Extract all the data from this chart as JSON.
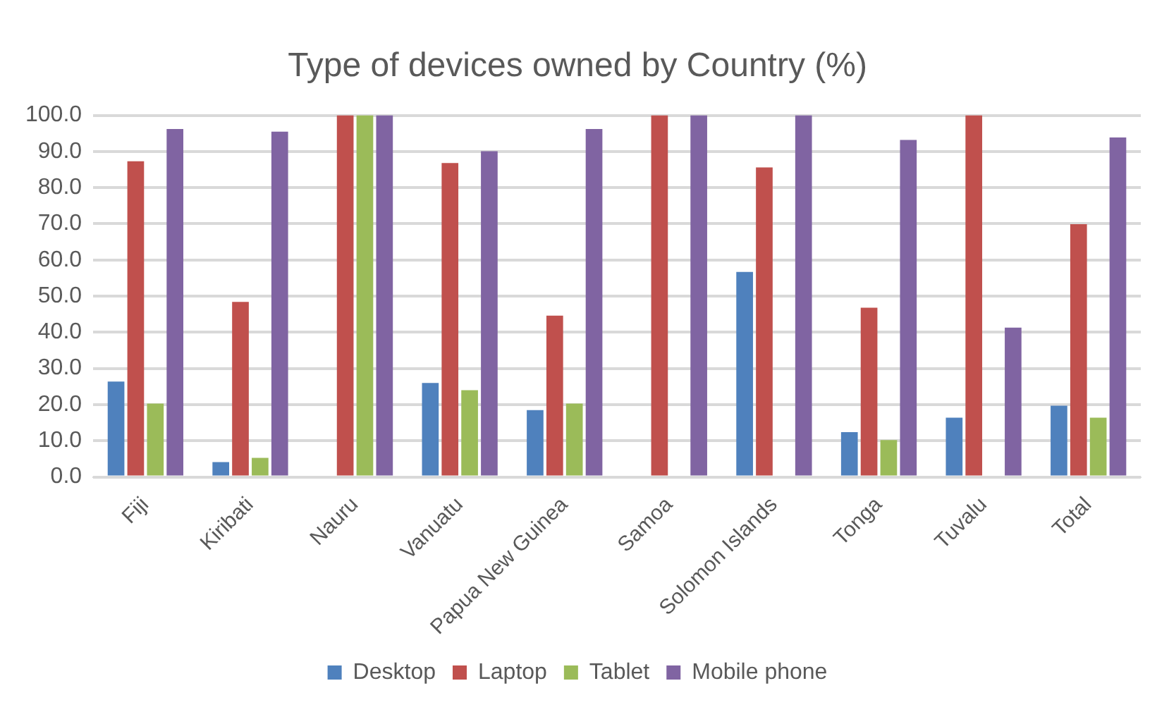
{
  "chart_data": {
    "type": "bar",
    "title": "Type of devices owned by Country (%)",
    "categories": [
      "Fiji",
      "Kiribati",
      "Nauru",
      "Vanuatu",
      "Papua New Guinea",
      "Samoa",
      "Solomon Islands",
      "Tonga",
      "Tuvalu",
      "Total"
    ],
    "series": [
      {
        "name": "Desktop",
        "color": "#4f81bd",
        "values": [
          26.4,
          4.1,
          null,
          26.0,
          18.5,
          null,
          56.7,
          12.4,
          16.4,
          19.7
        ]
      },
      {
        "name": "Laptop",
        "color": "#c0504d",
        "values": [
          87.3,
          48.4,
          100,
          86.8,
          44.6,
          100,
          85.6,
          46.8,
          100,
          69.9
        ]
      },
      {
        "name": "Tablet",
        "color": "#9bbb59",
        "values": [
          20.3,
          5.3,
          100,
          24.0,
          20.3,
          null,
          null,
          10.2,
          null,
          16.4
        ]
      },
      {
        "name": "Mobile phone",
        "color": "#8064a2",
        "values": [
          96.2,
          95.5,
          100,
          90.1,
          96.2,
          100,
          100,
          93.2,
          41.3,
          93.9
        ]
      }
    ],
    "ylim": [
      0,
      100
    ],
    "yticks": [
      {
        "value": 0,
        "label": "0.0"
      },
      {
        "value": 10,
        "label": "10.0"
      },
      {
        "value": 20,
        "label": "20.0"
      },
      {
        "value": 30,
        "label": "30.0"
      },
      {
        "value": 40,
        "label": "40.0"
      },
      {
        "value": 50,
        "label": "50.0"
      },
      {
        "value": 60,
        "label": "60.0"
      },
      {
        "value": 70,
        "label": "70.0"
      },
      {
        "value": 80,
        "label": "80.0"
      },
      {
        "value": 90,
        "label": "90.0"
      },
      {
        "value": 100,
        "label": "100.0"
      }
    ],
    "grid": "y",
    "legend": "bottom"
  }
}
